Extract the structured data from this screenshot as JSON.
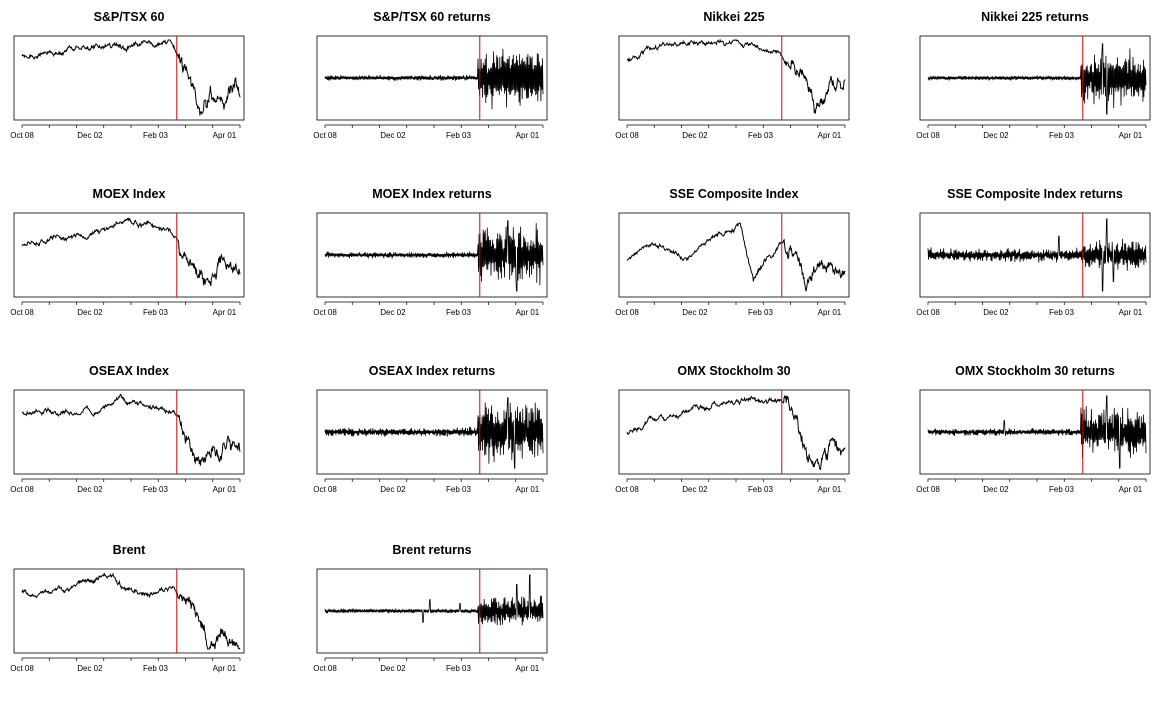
{
  "chart_data": [
    {
      "type": "line",
      "title": "S&P/TSX 60",
      "xticks": [
        "Oct 08",
        "Dec 02",
        "Feb 03",
        "Apr 01"
      ],
      "ylabel": "",
      "marker": "red-vertical-line",
      "shape": {
        "kind": "price",
        "events": [
          [
            0,
            0.2
          ],
          [
            0.05,
            0.22
          ],
          [
            0.28,
            0.12
          ],
          [
            0.58,
            0.05
          ],
          [
            0.68,
            0.02
          ],
          [
            0.72,
            0.25
          ],
          [
            0.76,
            0.55
          ],
          [
            0.82,
            0.95
          ],
          [
            0.86,
            0.7
          ],
          [
            0.93,
            0.72
          ],
          [
            0.96,
            0.66
          ],
          [
            1,
            0.72
          ]
        ],
        "seed": 11
      }
    },
    {
      "type": "line",
      "title": "S&P/TSX 60 returns",
      "xticks": [
        "Oct 08",
        "Dec 02",
        "Feb 03",
        "Apr 01"
      ],
      "ylabel": "",
      "marker": "red-vertical-line",
      "shape": {
        "kind": "returns",
        "base": 0.06,
        "tail": 0.85,
        "spikes": [],
        "seed": 12
      }
    },
    {
      "type": "line",
      "title": "Nikkei 225",
      "xticks": [
        "Oct 08",
        "Dec 02",
        "Feb 03",
        "Apr 01"
      ],
      "ylabel": "",
      "marker": "red-vertical-line",
      "shape": {
        "kind": "price",
        "events": [
          [
            0,
            0.28
          ],
          [
            0.05,
            0.2
          ],
          [
            0.2,
            0.08
          ],
          [
            0.4,
            0.03
          ],
          [
            0.55,
            0.05
          ],
          [
            0.68,
            0.12
          ],
          [
            0.75,
            0.3
          ],
          [
            0.8,
            0.5
          ],
          [
            0.86,
            0.95
          ],
          [
            0.9,
            0.8
          ],
          [
            0.95,
            0.72
          ],
          [
            1,
            0.7
          ]
        ],
        "seed": 21
      }
    },
    {
      "type": "line",
      "title": "Nikkei 225 returns",
      "xticks": [
        "Oct 08",
        "Dec 02",
        "Feb 03",
        "Apr 01"
      ],
      "ylabel": "",
      "marker": "red-vertical-line",
      "shape": {
        "kind": "returns",
        "base": 0.05,
        "tail": 0.8,
        "spikes": [
          [
            0.82,
            -0.95
          ],
          [
            0.8,
            0.9
          ]
        ],
        "seed": 22
      }
    },
    {
      "type": "line",
      "title": "MOEX Index",
      "xticks": [
        "Oct 08",
        "Dec 02",
        "Feb 03",
        "Apr 01"
      ],
      "ylabel": "",
      "marker": "red-vertical-line",
      "shape": {
        "kind": "price",
        "events": [
          [
            0,
            0.38
          ],
          [
            0.1,
            0.28
          ],
          [
            0.3,
            0.25
          ],
          [
            0.48,
            0.05
          ],
          [
            0.6,
            0.08
          ],
          [
            0.68,
            0.15
          ],
          [
            0.73,
            0.35
          ],
          [
            0.8,
            0.72
          ],
          [
            0.86,
            0.9
          ],
          [
            0.92,
            0.62
          ],
          [
            0.96,
            0.62
          ],
          [
            1,
            0.68
          ]
        ],
        "seed": 31
      }
    },
    {
      "type": "line",
      "title": "MOEX Index returns",
      "xticks": [
        "Oct 08",
        "Dec 02",
        "Feb 03",
        "Apr 01"
      ],
      "ylabel": "",
      "marker": "red-vertical-line",
      "shape": {
        "kind": "returns",
        "base": 0.07,
        "tail": 0.9,
        "spikes": [
          [
            0.88,
            -0.95
          ],
          [
            0.84,
            0.9
          ]
        ],
        "seed": 32
      }
    },
    {
      "type": "line",
      "title": "SSE Composite Index",
      "xticks": [
        "Oct 08",
        "Dec 02",
        "Feb 03",
        "Apr 01"
      ],
      "ylabel": "",
      "marker": "red-vertical-line",
      "shape": {
        "kind": "price",
        "events": [
          [
            0,
            0.55
          ],
          [
            0.1,
            0.35
          ],
          [
            0.28,
            0.5
          ],
          [
            0.4,
            0.25
          ],
          [
            0.52,
            0.05
          ],
          [
            0.58,
            0.85
          ],
          [
            0.64,
            0.55
          ],
          [
            0.72,
            0.3
          ],
          [
            0.76,
            0.45
          ],
          [
            0.82,
            0.85
          ],
          [
            0.88,
            0.72
          ],
          [
            1,
            0.65
          ]
        ],
        "seed": 41
      }
    },
    {
      "type": "line",
      "title": "SSE Composite Index returns",
      "xticks": [
        "Oct 08",
        "Dec 02",
        "Feb 03",
        "Apr 01"
      ],
      "ylabel": "",
      "marker": "red-vertical-line",
      "shape": {
        "kind": "returns",
        "base": 0.15,
        "tail": 0.45,
        "spikes": [
          [
            0.82,
            0.95
          ],
          [
            0.8,
            -0.95
          ],
          [
            0.6,
            0.5
          ],
          [
            0.85,
            -0.7
          ]
        ],
        "seed": 42
      }
    },
    {
      "type": "line",
      "title": "OSEAX Index",
      "xticks": [
        "Oct 08",
        "Dec 02",
        "Feb 03",
        "Apr 01"
      ],
      "ylabel": "",
      "marker": "red-vertical-line",
      "shape": {
        "kind": "price",
        "events": [
          [
            0,
            0.25
          ],
          [
            0.2,
            0.2
          ],
          [
            0.33,
            0.25
          ],
          [
            0.45,
            0.05
          ],
          [
            0.6,
            0.2
          ],
          [
            0.7,
            0.22
          ],
          [
            0.75,
            0.45
          ],
          [
            0.82,
            0.95
          ],
          [
            0.87,
            0.78
          ],
          [
            0.93,
            0.6
          ],
          [
            1,
            0.62
          ]
        ],
        "seed": 51
      }
    },
    {
      "type": "line",
      "title": "OSEAX Index returns",
      "xticks": [
        "Oct 08",
        "Dec 02",
        "Feb 03",
        "Apr 01"
      ],
      "ylabel": "",
      "marker": "red-vertical-line",
      "shape": {
        "kind": "returns",
        "base": 0.1,
        "tail": 0.9,
        "spikes": [
          [
            0.87,
            -0.95
          ],
          [
            0.84,
            0.9
          ]
        ],
        "seed": 52
      }
    },
    {
      "type": "line",
      "title": "OMX Stockholm 30",
      "xticks": [
        "Oct 08",
        "Dec 02",
        "Feb 03",
        "Apr 01"
      ],
      "ylabel": "",
      "marker": "red-vertical-line",
      "shape": {
        "kind": "price",
        "events": [
          [
            0,
            0.5
          ],
          [
            0.08,
            0.35
          ],
          [
            0.2,
            0.28
          ],
          [
            0.4,
            0.15
          ],
          [
            0.55,
            0.12
          ],
          [
            0.68,
            0.05
          ],
          [
            0.75,
            0.2
          ],
          [
            0.8,
            0.55
          ],
          [
            0.88,
            0.95
          ],
          [
            0.93,
            0.75
          ],
          [
            1,
            0.7
          ]
        ],
        "seed": 61
      }
    },
    {
      "type": "line",
      "title": "OMX Stockholm 30 returns",
      "xticks": [
        "Oct 08",
        "Dec 02",
        "Feb 03",
        "Apr 01"
      ],
      "ylabel": "",
      "marker": "red-vertical-line",
      "shape": {
        "kind": "returns",
        "base": 0.08,
        "tail": 0.75,
        "spikes": [
          [
            0.82,
            0.95
          ],
          [
            0.88,
            -0.95
          ],
          [
            0.35,
            0.3
          ]
        ],
        "seed": 62
      }
    },
    {
      "type": "line",
      "title": "Brent",
      "xticks": [
        "Oct 08",
        "Dec 02",
        "Feb 03",
        "Apr 01"
      ],
      "ylabel": "",
      "marker": "red-vertical-line",
      "shape": {
        "kind": "price",
        "events": [
          [
            0,
            0.28
          ],
          [
            0.2,
            0.22
          ],
          [
            0.42,
            0.05
          ],
          [
            0.48,
            0.2
          ],
          [
            0.6,
            0.3
          ],
          [
            0.7,
            0.18
          ],
          [
            0.75,
            0.5
          ],
          [
            0.82,
            0.8
          ],
          [
            0.88,
            0.95
          ],
          [
            0.94,
            0.78
          ],
          [
            1,
            0.88
          ]
        ],
        "seed": 71
      }
    },
    {
      "type": "line",
      "title": "Brent returns",
      "xticks": [
        "Oct 08",
        "Dec 02",
        "Feb 03",
        "Apr 01"
      ],
      "ylabel": "",
      "marker": "red-vertical-line",
      "shape": {
        "kind": "returns",
        "base": 0.05,
        "tail": 0.45,
        "spikes": [
          [
            0.94,
            0.95
          ],
          [
            0.88,
            0.7
          ],
          [
            0.48,
            0.3
          ],
          [
            0.45,
            -0.3
          ],
          [
            0.62,
            0.2
          ]
        ],
        "seed": 72
      }
    }
  ]
}
